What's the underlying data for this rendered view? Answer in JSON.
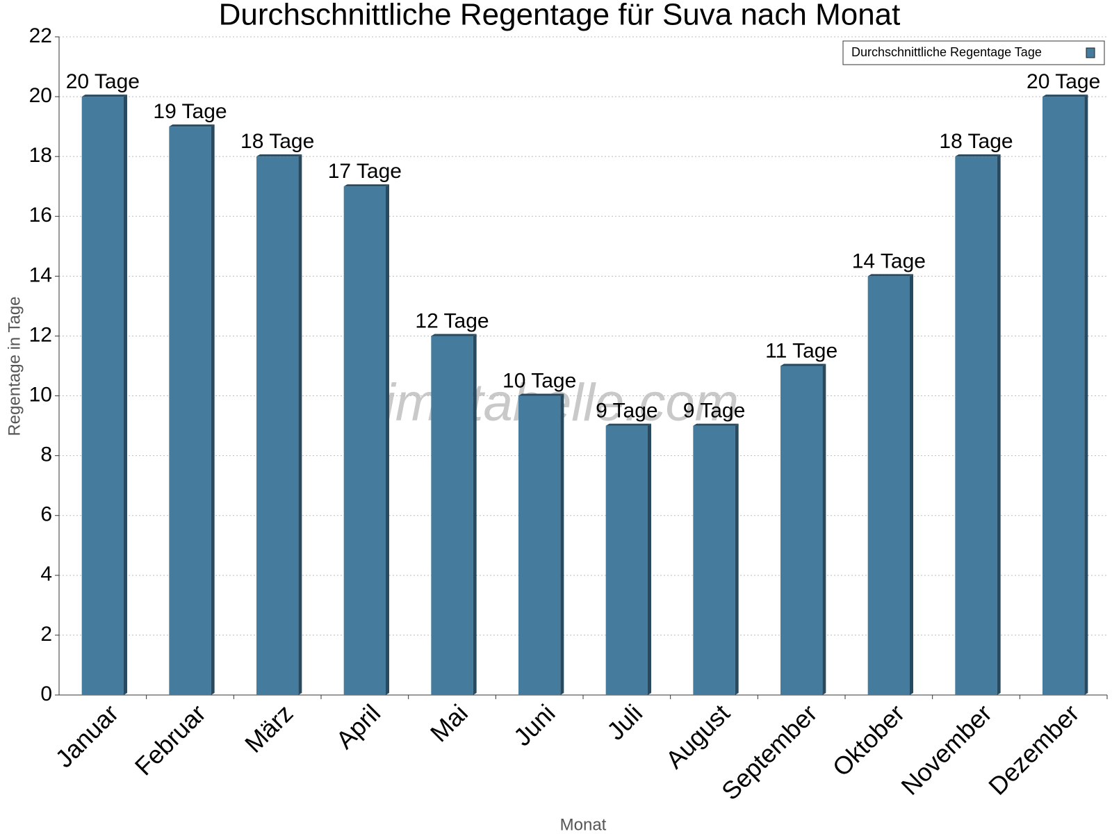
{
  "chart_data": {
    "type": "bar",
    "title": "Durchschnittliche Regentage für Suva nach Monat",
    "x_label": "Monat",
    "y_label": "Regentage in Tage",
    "watermark": "klimatabelle.com",
    "categories": [
      "Januar",
      "Februar",
      "März",
      "April",
      "Mai",
      "Juni",
      "Juli",
      "August",
      "September",
      "Oktober",
      "November",
      "Dezember"
    ],
    "series": [
      {
        "name": "Durchschnittliche Regentage Tage",
        "color": "#457b9d",
        "values": [
          20,
          19,
          18,
          17,
          12,
          10,
          9,
          9,
          11,
          14,
          18,
          20
        ],
        "value_labels": [
          "20 Tage",
          "19 Tage",
          "18 Tage",
          "17 Tage",
          "12 Tage",
          "10 Tage",
          "9 Tage",
          "9 Tage",
          "11 Tage",
          "14 Tage",
          "18 Tage",
          "20 Tage"
        ]
      }
    ],
    "ylim": [
      0,
      22
    ],
    "yticks": [
      0,
      2,
      4,
      6,
      8,
      10,
      12,
      14,
      16,
      18,
      20,
      22
    ],
    "grid": true,
    "legend": "top-right"
  }
}
